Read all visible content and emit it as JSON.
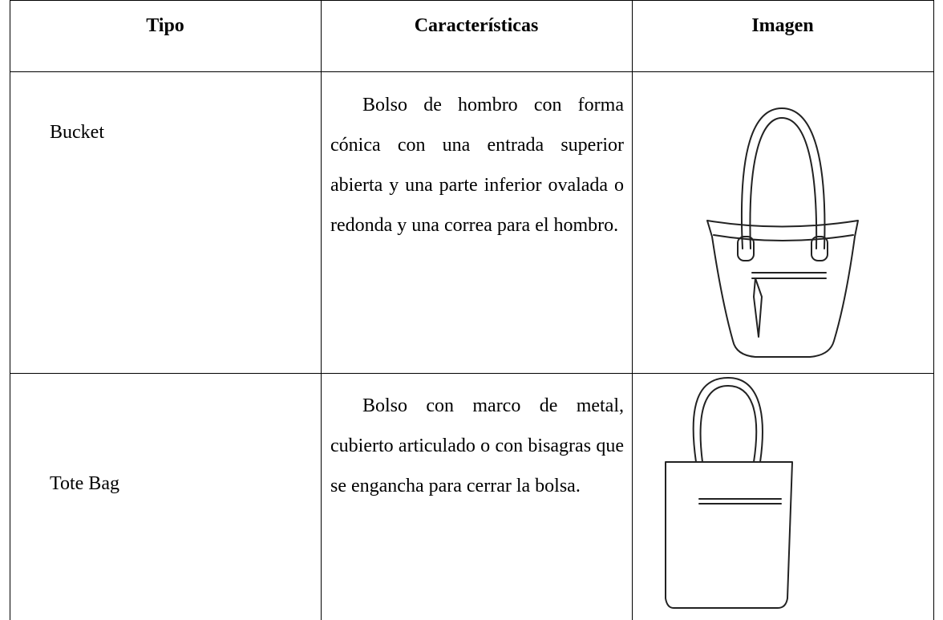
{
  "table": {
    "headers": [
      "Tipo",
      "Características",
      "Imagen"
    ],
    "rows": [
      [
        "Bucket",
        "Bolso de hombro con forma cónica con una entrada superior abierta y una parte inferior ovalada o redonda y una correa para el hombro."
      ],
      [
        "Tote Bag",
        "Bolso con marco de metal, cubierto articulado o con bisagras que se engancha para cerrar la bolsa."
      ]
    ]
  }
}
